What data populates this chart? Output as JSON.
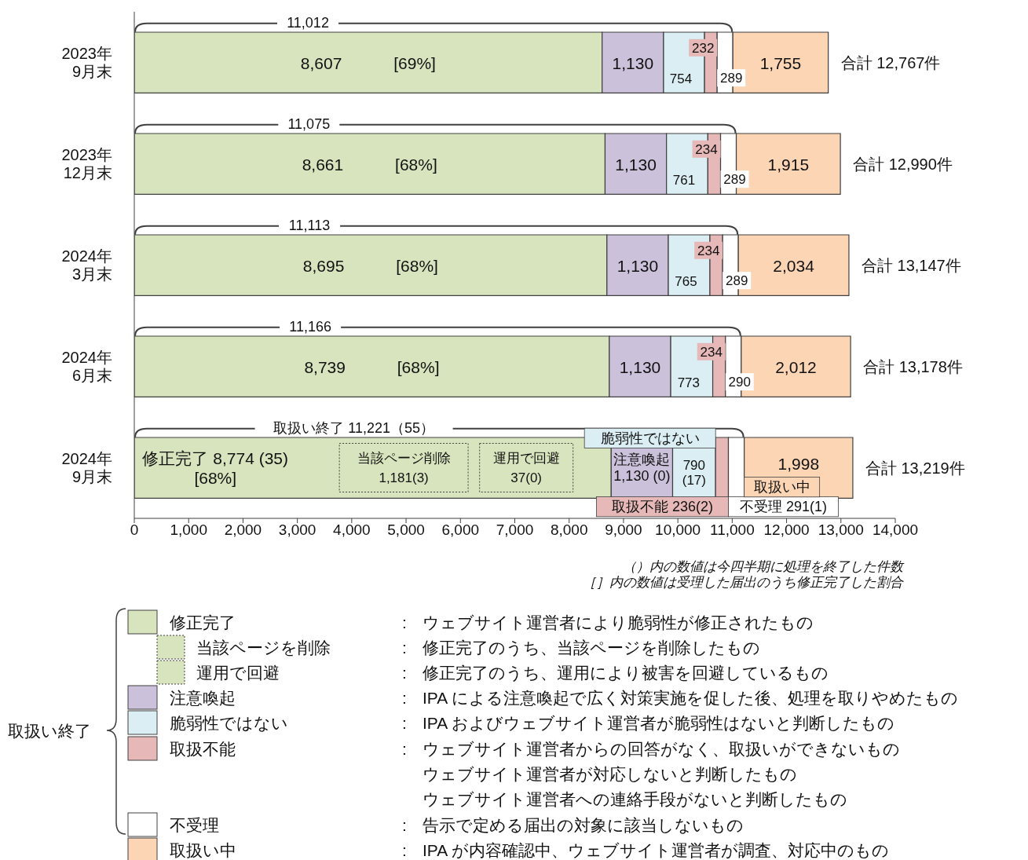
{
  "chart_data": {
    "type": "bar",
    "orientation": "horizontal",
    "stacked": true,
    "legend": "bottom",
    "categories": [
      "2023年\n9月末",
      "2023年\n12月末",
      "2024年\n3月末",
      "2024年\n6月末",
      "2024年\n9月末"
    ],
    "series": [
      {
        "name": "修正完了",
        "color": "#d7e4bd",
        "values": [
          8607,
          8661,
          8695,
          8739,
          8774
        ],
        "value_labels": [
          "8,607 [69%]",
          "8,661 [68%]",
          "8,695 [68%]",
          "8,739 [68%]",
          "修正完了 8,774 (35)\n[68%]"
        ]
      },
      {
        "name": "注意喚起",
        "color": "#ccc1da",
        "values": [
          1130,
          1130,
          1130,
          1130,
          1130
        ],
        "value_labels": [
          "1,130",
          "1,130",
          "1,130",
          "1,130",
          "注意喚起\n1,130 (0)"
        ]
      },
      {
        "name": "脆弱性ではない",
        "color": "#dbeef4",
        "values": [
          754,
          761,
          765,
          773,
          790
        ],
        "value_labels": [
          "754",
          "761",
          "765",
          "773",
          "790\n(17)"
        ]
      },
      {
        "name": "取扱不能",
        "color": "#e6b9b8",
        "values": [
          232,
          234,
          234,
          234,
          236
        ],
        "value_labels": [
          "232",
          "234",
          "234",
          "234",
          "取扱不能 236(2)"
        ]
      },
      {
        "name": "不受理",
        "color": "#ffffff",
        "values": [
          289,
          289,
          289,
          290,
          291
        ],
        "value_labels": [
          "289",
          "289",
          "289",
          "290",
          "不受理 291(1)"
        ]
      },
      {
        "name": "取扱い中",
        "color": "#fcd5b5",
        "values": [
          1755,
          1915,
          2034,
          2012,
          1998
        ],
        "value_labels": [
          "1,755",
          "1,915",
          "2,034",
          "2,012",
          "1,998"
        ]
      }
    ],
    "totals": [
      "合計 12,767件",
      "合計 12,990件",
      "合計 13,147件",
      "合計 13,178件",
      "合計 13,219件"
    ],
    "xlim": [
      0,
      14000
    ],
    "xticks": [
      0,
      {
        "value": 1000,
        "label": "1,000"
      },
      {
        "value": 2000,
        "label": "2,000"
      },
      {
        "value": 3000,
        "label": "3,000"
      },
      {
        "value": 4000,
        "label": "4,000"
      },
      {
        "value": 5000,
        "label": "5,000"
      },
      {
        "value": 6000,
        "label": "6,000"
      },
      {
        "value": 7000,
        "label": "7,000"
      },
      {
        "value": 8000,
        "label": "8,000"
      },
      {
        "value": 9000,
        "label": "9,000"
      },
      {
        "value": 10000,
        "label": "10,000"
      },
      {
        "value": 11000,
        "label": "11,000"
      },
      {
        "value": 12000,
        "label": "12,000"
      },
      {
        "value": 13000,
        "label": "13,000"
      },
      {
        "value": 14000,
        "label": "14,000"
      }
    ],
    "annotations": [
      "11,012",
      "11,075",
      "11,113",
      "11,166",
      "取扱い終了 11,221（55）",
      "当該ページ削除\n1,181(3)",
      "運用で回避\n37(0)",
      "脆弱性ではない",
      "取扱い中",
      "（）内の数値は今四半期に処理を終了した件数",
      "［］内の数値は受理した届出のうち修正完了した割合",
      "取扱い終了",
      "当該ページを削除",
      "運用で回避",
      ": ウェブサイト運営者により脆弱性が修正されたもの",
      ": 修正完了のうち、当該ページを削除したもの",
      ": 修正完了のうち、運用により被害を回避しているもの",
      ": IPA による注意喚起で広く対策実施を促した後、処理を取りやめたもの",
      ": IPA およびウェブサイト運営者が脆弱性はないと判断したもの",
      ": ウェブサイト運営者からの回答がなく、取扱いができないもの",
      "ウェブサイト運営者が対応しないと判断したもの",
      "ウェブサイト運営者への連絡手段がないと判断したもの",
      ": 告示で定める届出の対象に該当しないもの",
      ": IPA が内容確認中、ウェブサイト運営者が調査、対応中のもの"
    ]
  }
}
